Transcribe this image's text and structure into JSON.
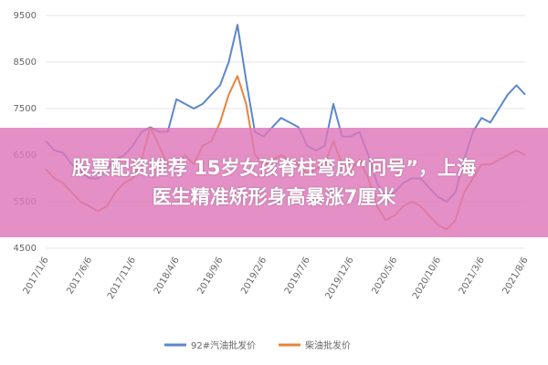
{
  "chart_data": {
    "type": "line",
    "categories": [
      "2017/1/6",
      null,
      null,
      null,
      null,
      "2017/6/6",
      null,
      null,
      null,
      null,
      "2017/11/6",
      null,
      null,
      null,
      null,
      "2018/4/6",
      null,
      null,
      null,
      null,
      "2018/9/6",
      null,
      null,
      null,
      null,
      "2019/2/6",
      null,
      null,
      null,
      null,
      "2019/7/6",
      null,
      null,
      null,
      null,
      "2019/12/6",
      null,
      null,
      null,
      null,
      "2020/5/6",
      null,
      null,
      null,
      null,
      "2020/10/6",
      null,
      null,
      null,
      null,
      "2021/3/6",
      null,
      null,
      null,
      null,
      "2021/8/6"
    ],
    "series": [
      {
        "name": "92#汽油批发价",
        "color": "#5b87cc",
        "values": [
          6800,
          6600,
          6550,
          6300,
          6150,
          6000,
          6000,
          6200,
          6400,
          6500,
          6700,
          7000,
          7100,
          7000,
          7000,
          7700,
          7600,
          7500,
          7600,
          7800,
          8000,
          8500,
          9300,
          8100,
          7000,
          6900,
          7100,
          7300,
          7200,
          7100,
          6700,
          6600,
          6700,
          7600,
          6900,
          6900,
          7000,
          6500,
          5900,
          5600,
          5700,
          5900,
          6000,
          6000,
          5800,
          5600,
          5500,
          5700,
          6400,
          7000,
          7300,
          7200,
          7500,
          7800,
          8000,
          7800
        ]
      },
      {
        "name": "柴油批发价",
        "color": "#e8843c",
        "values": [
          6200,
          6000,
          5900,
          5700,
          5500,
          5400,
          5300,
          5400,
          5700,
          5900,
          6000,
          6400,
          7100,
          6700,
          6300,
          6300,
          6500,
          6300,
          6700,
          6800,
          7200,
          7800,
          8200,
          7600,
          6500,
          6300,
          6400,
          6500,
          6400,
          6300,
          6100,
          6200,
          6300,
          6800,
          6300,
          6200,
          6400,
          6000,
          5400,
          5100,
          5200,
          5400,
          5500,
          5400,
          5200,
          5000,
          4900,
          5100,
          5700,
          6000,
          6300,
          6300,
          6400,
          6500,
          6600,
          6500
        ]
      }
    ],
    "ylim": [
      4500,
      9500
    ],
    "yticks": [
      4500,
      5500,
      6500,
      7500,
      8500,
      9500
    ],
    "grid": true
  },
  "overlay": {
    "lines": [
      "股票配资推荐 15岁女孩脊柱弯成“问号”，上海",
      "医生精准矫形身高暴涨7厘米"
    ]
  }
}
